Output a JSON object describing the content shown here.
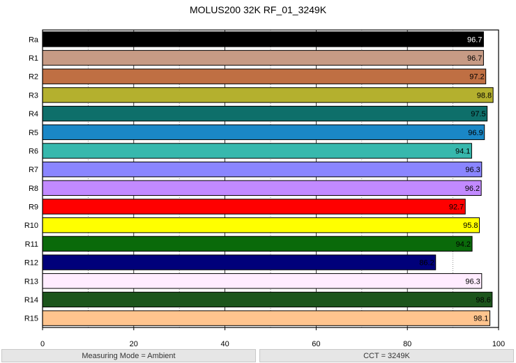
{
  "chart_data": {
    "type": "bar",
    "orientation": "horizontal",
    "title": "MOLUS200 32K RF_01_3249K",
    "xlabel": "",
    "ylabel": "",
    "xlim": [
      0,
      100
    ],
    "xticks": [
      0,
      20,
      40,
      60,
      80,
      100
    ],
    "grid": true,
    "categories": [
      "Ra",
      "R1",
      "R2",
      "R3",
      "R4",
      "R5",
      "R6",
      "R7",
      "R8",
      "R9",
      "R10",
      "R11",
      "R12",
      "R13",
      "R14",
      "R15"
    ],
    "values": [
      96.7,
      96.7,
      97.2,
      98.8,
      97.5,
      96.9,
      94.1,
      96.3,
      96.2,
      92.7,
      95.8,
      94.2,
      86.2,
      96.3,
      98.6,
      98.1
    ],
    "value_labels": [
      "96.7",
      "96.7",
      "97.2",
      "98.8",
      "97.5",
      "96.9",
      "94.1",
      "96.3",
      "96.2",
      "92.7",
      "95.8",
      "94.2",
      "86.2",
      "96.3",
      "98.6",
      "98.1"
    ],
    "colors": [
      "#000000",
      "#c79b85",
      "#bf6f43",
      "#b4b02e",
      "#0e6f6a",
      "#1a87c6",
      "#37b8ad",
      "#8a85ff",
      "#c28aff",
      "#ff0000",
      "#ffff00",
      "#0a6a0a",
      "#00007a",
      "#ffecff",
      "#1c551c",
      "#ffc48e"
    ],
    "label_colors": [
      "#ffffff",
      "#000000",
      "#000000",
      "#000000",
      "#000000",
      "#000000",
      "#000000",
      "#000000",
      "#000000",
      "#000000",
      "#000000",
      "#000000",
      "#000000",
      "#000000",
      "#000000",
      "#000000"
    ]
  },
  "footer": {
    "measuring_mode": "Measuring Mode = Ambient",
    "cct": "CCT = 3249K"
  }
}
